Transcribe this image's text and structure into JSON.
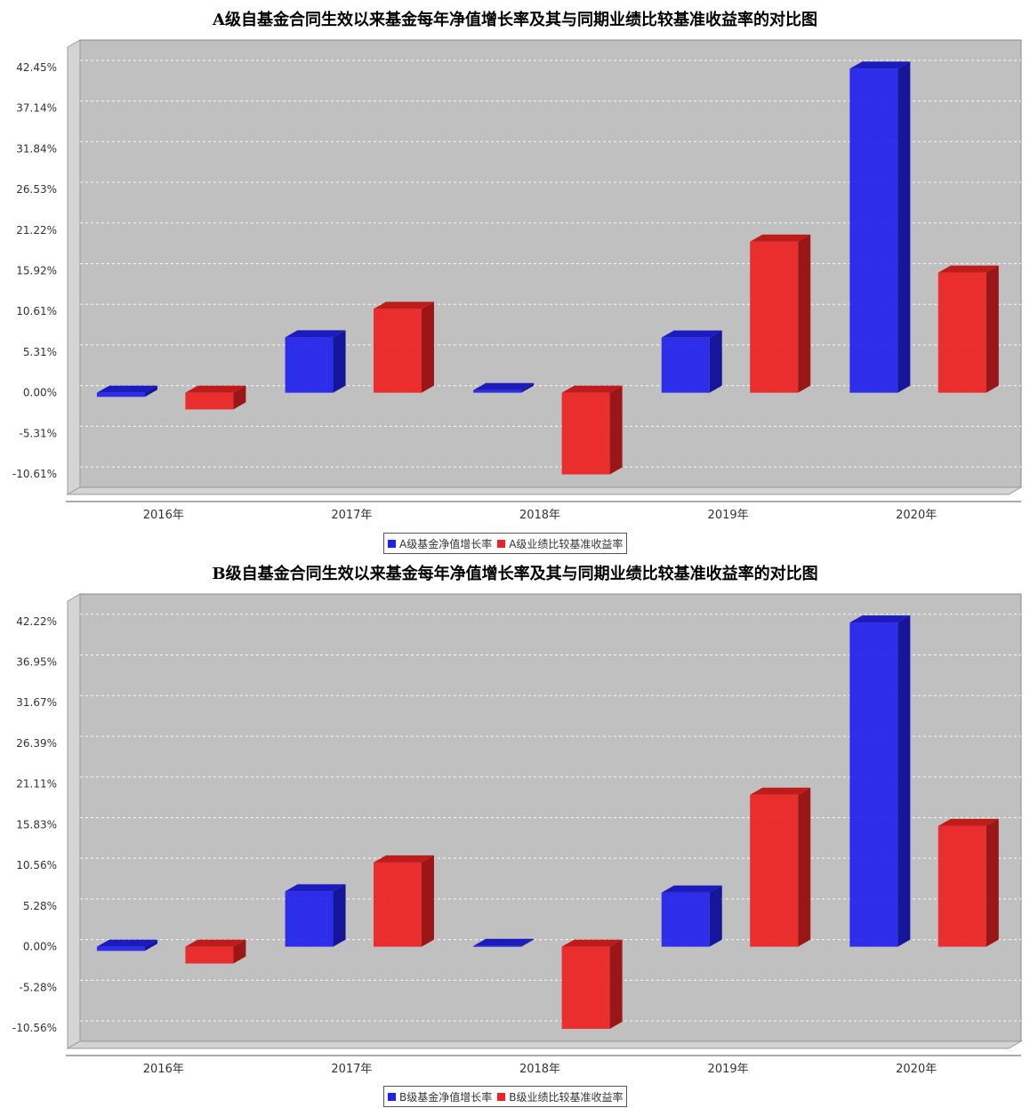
{
  "colors": {
    "blue": "#2222ee",
    "red": "#ee2222",
    "plot_bg": "#c0c0c0"
  },
  "chart_data": [
    {
      "type": "bar",
      "title": "A级自基金合同生效以来基金每年净值增长率及其与同期业绩比较基准收益率的对比图",
      "categories": [
        "2016年",
        "2017年",
        "2018年",
        "2019年",
        "2020年"
      ],
      "series": [
        {
          "name": "A级基金净值增长率",
          "color": "#2222ee",
          "values": [
            -0.54,
            7.23,
            0.34,
            7.19,
            42.29
          ]
        },
        {
          "name": "A级业绩比较基准收益率",
          "color": "#ee2222",
          "values": [
            -2.18,
            10.94,
            -10.66,
            19.72,
            15.67
          ]
        }
      ],
      "y_ticks": [
        "42.45%",
        "37.14%",
        "31.84%",
        "26.53%",
        "21.22%",
        "15.92%",
        "10.61%",
        "5.31%",
        "0.00%",
        "-5.31%",
        "-10.61%"
      ],
      "y_tick_values": [
        42.45,
        37.14,
        31.84,
        26.53,
        21.22,
        15.92,
        10.61,
        5.31,
        0,
        -5.31,
        -10.61
      ],
      "ylim": [
        -13.27,
        45.1
      ],
      "grid": true,
      "legend": "bottom"
    },
    {
      "type": "bar",
      "title": "B级自基金合同生效以来基金每年净值增长率及其与同期业绩比较基准收益率的对比图",
      "categories": [
        "2016年",
        "2017年",
        "2018年",
        "2019年",
        "2020年"
      ],
      "series": [
        {
          "name": "B级基金净值增长率",
          "color": "#2222ee",
          "values": [
            -0.54,
            7.18,
            0.1,
            7.03,
            42.07
          ]
        },
        {
          "name": "B级业绩比较基准收益率",
          "color": "#ee2222",
          "values": [
            -2.18,
            10.94,
            -10.66,
            19.72,
            15.67
          ]
        }
      ],
      "y_ticks": [
        "42.22%",
        "36.95%",
        "31.67%",
        "26.39%",
        "21.11%",
        "15.83%",
        "10.56%",
        "5.28%",
        "0.00%",
        "-5.28%",
        "-10.56%"
      ],
      "y_tick_values": [
        42.22,
        36.95,
        31.67,
        26.39,
        21.11,
        15.83,
        10.56,
        5.28,
        0,
        -5.28,
        -10.56
      ],
      "ylim": [
        -13.2,
        44.85
      ],
      "grid": true,
      "legend": "bottom"
    }
  ]
}
